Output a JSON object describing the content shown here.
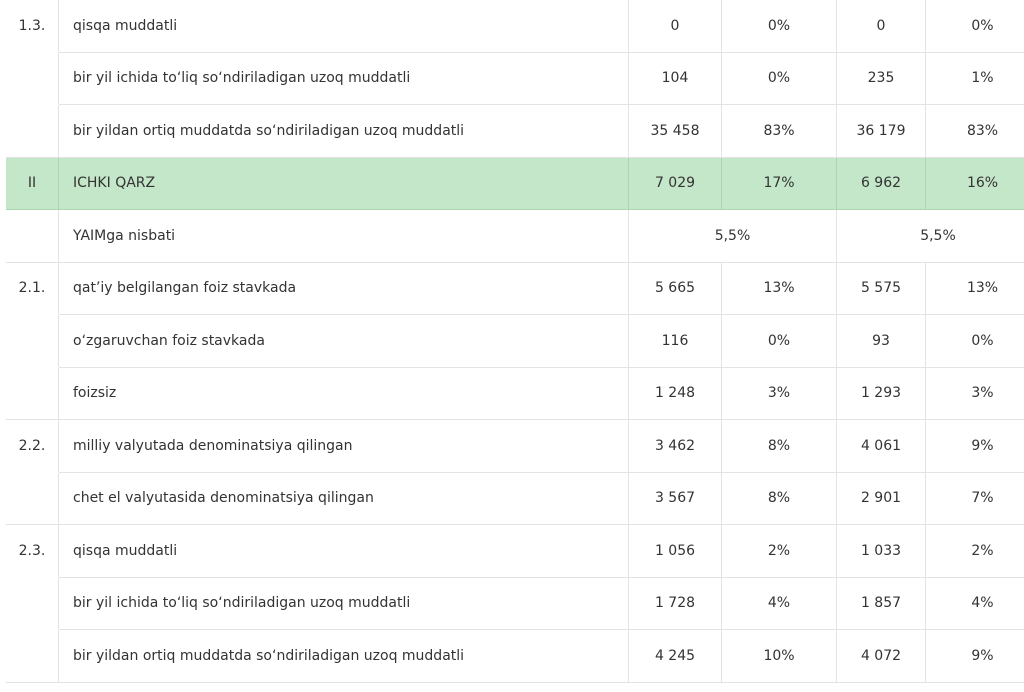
{
  "rows": [
    {
      "num": "1.3.",
      "label": "qisqa muddatli",
      "v1": "0",
      "p1": "0%",
      "v2": "0",
      "p2": "0%"
    },
    {
      "num": "",
      "label": "bir yil ichida to‘liq so‘ndiriladigan uzoq muddatli",
      "v1": "104",
      "p1": "0%",
      "v2": "235",
      "p2": "1%"
    },
    {
      "num": "",
      "label": "bir yildan ortiq muddatda so‘ndiriladigan uzoq muddatli",
      "v1": "35 458",
      "p1": "83%",
      "v2": "36 179",
      "p2": "83%"
    },
    {
      "num": "II",
      "label": "ICHKI QARZ",
      "v1": "7 029",
      "p1": "17%",
      "v2": "6 962",
      "p2": "16%"
    },
    {
      "label": "YAIMga nisbati",
      "m1": "5,5%",
      "m2": "5,5%"
    },
    {
      "num": "2.1.",
      "label": "qat’iy belgilangan foiz stavkada",
      "v1": "5 665",
      "p1": "13%",
      "v2": "5 575",
      "p2": "13%"
    },
    {
      "num": "",
      "label": "o‘zgaruvchan foiz stavkada",
      "v1": "116",
      "p1": "0%",
      "v2": "93",
      "p2": "0%"
    },
    {
      "num": "",
      "label": "foizsiz",
      "v1": "1 248",
      "p1": "3%",
      "v2": "1 293",
      "p2": "3%"
    },
    {
      "num": "2.2.",
      "label": "milliy valyutada denominatsiya qilingan",
      "v1": "3 462",
      "p1": "8%",
      "v2": "4 061",
      "p2": "9%"
    },
    {
      "num": "",
      "label": "chet el valyutasida denominatsiya qilingan",
      "v1": "3 567",
      "p1": "8%",
      "v2": "2 901",
      "p2": "7%"
    },
    {
      "num": "2.3.",
      "label": "qisqa muddatli",
      "v1": "1 056",
      "p1": "2%",
      "v2": "1 033",
      "p2": "2%"
    },
    {
      "num": "",
      "label": "bir yil ichida to‘liq so‘ndiriladigan uzoq muddatli",
      "v1": "1 728",
      "p1": "4%",
      "v2": "1 857",
      "p2": "4%"
    },
    {
      "num": "",
      "label": "bir yildan ortiq muddatda so‘ndiriladigan uzoq muddatli",
      "v1": "4 245",
      "p1": "10%",
      "v2": "4 072",
      "p2": "9%"
    }
  ],
  "highlight_color": "#c4e6c9"
}
